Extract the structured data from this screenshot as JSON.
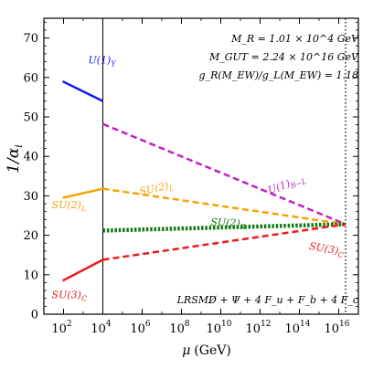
{
  "chart_data": {
    "type": "line",
    "xscale": "log",
    "xlim": [
      10,
      1e+17
    ],
    "ylim": [
      0,
      75
    ],
    "xlabel_sym": "μ",
    "xlabel_unit": "(GeV)",
    "ylabel": "1/α",
    "ylabel_sub": "i",
    "x_ticks": [
      {
        "base": "10",
        "exp": "2",
        "value": 100
      },
      {
        "base": "10",
        "exp": "4",
        "value": 10000
      },
      {
        "base": "10",
        "exp": "6",
        "value": 1000000
      },
      {
        "base": "10",
        "exp": "8",
        "value": 100000000
      },
      {
        "base": "10",
        "exp": "10",
        "value": 10000000000
      },
      {
        "base": "10",
        "exp": "12",
        "value": 1000000000000
      },
      {
        "base": "10",
        "exp": "14",
        "value": 100000000000000
      },
      {
        "base": "10",
        "exp": "16",
        "value": 10000000000000000
      }
    ],
    "y_ticks": [
      "0",
      "10",
      "20",
      "30",
      "40",
      "50",
      "60",
      "70"
    ],
    "y_tick_values": [
      0,
      10,
      20,
      30,
      40,
      50,
      60,
      70
    ],
    "vertical_lines": [
      {
        "x": 10000,
        "style": "solid"
      },
      {
        "x": 22400000000000000,
        "style": "dotted"
      }
    ],
    "annotations": [
      "M_R = 1.01 × 10^4 GeV",
      "M_GUT = 2.24 × 10^16 GeV",
      "g_R(M_EW)/g_L(M_EW) = 1.18"
    ],
    "model_label": "LRSMD̸ + Ψ + 4 F_u + F_b + 4 F_c",
    "series": [
      {
        "name": "U(1)_Y",
        "color": "#1a1aee",
        "style": "solid",
        "x": [
          91.19,
          10100
        ],
        "y": [
          59.0,
          54.0
        ]
      },
      {
        "name": "SU(2)_L",
        "color": "#f5a300",
        "style": "solid",
        "x": [
          91.19,
          10100
        ],
        "y": [
          29.5,
          31.8
        ]
      },
      {
        "name": "SU(3)_C",
        "color": "#ee1a1a",
        "style": "solid",
        "x": [
          91.19,
          10100
        ],
        "y": [
          8.5,
          13.8
        ]
      },
      {
        "name": "U(1)_{B-L}",
        "color": "#c21fc2",
        "style": "dashed",
        "x": [
          10100,
          22400000000000000
        ],
        "y": [
          48.2,
          22.8
        ]
      },
      {
        "name": "SU(2)_L",
        "color": "#f5a300",
        "style": "dashed",
        "x": [
          10100,
          22400000000000000
        ],
        "y": [
          31.8,
          22.8
        ]
      },
      {
        "name": "SU(2)_R",
        "color": "#0f7a0f",
        "style": "dotted-thick",
        "x": [
          10100,
          22400000000000000
        ],
        "y": [
          21.2,
          22.8
        ]
      },
      {
        "name": "SU(3)_C",
        "color": "#ee1a1a",
        "style": "dashed",
        "x": [
          10100,
          22400000000000000
        ],
        "y": [
          13.8,
          22.8
        ]
      }
    ],
    "series_labels": [
      {
        "base": "U(1)",
        "sub": "Y",
        "color": "#1a1aee",
        "x": 1800,
        "y": 63.5,
        "rot": 0
      },
      {
        "base": "SU(2)",
        "sub": "L",
        "color": "#f5a300",
        "x": 25,
        "y": 26.8,
        "rot": 0
      },
      {
        "base": "SU(3)",
        "sub": "C",
        "color": "#ee1a1a",
        "x": 25,
        "y": 4.0,
        "rot": 0
      },
      {
        "base": "U(1)",
        "sub": "B−L",
        "color": "#c21fc2",
        "x": 3000000000000.0,
        "y": 30.5,
        "rot": 20
      },
      {
        "base": "SU(2)",
        "sub": "L",
        "color": "#f5a300",
        "x": 800000.0,
        "y": 30.2,
        "rot": 12
      },
      {
        "base": "SU(2)",
        "sub": "R",
        "color": "#0f7a0f",
        "x": 3000000000.0,
        "y": 22.5,
        "rot": -2
      },
      {
        "base": "SU(3)",
        "sub": "C",
        "color": "#ee1a1a",
        "x": 300000000000000.0,
        "y": 16.5,
        "rot": -10
      }
    ]
  }
}
